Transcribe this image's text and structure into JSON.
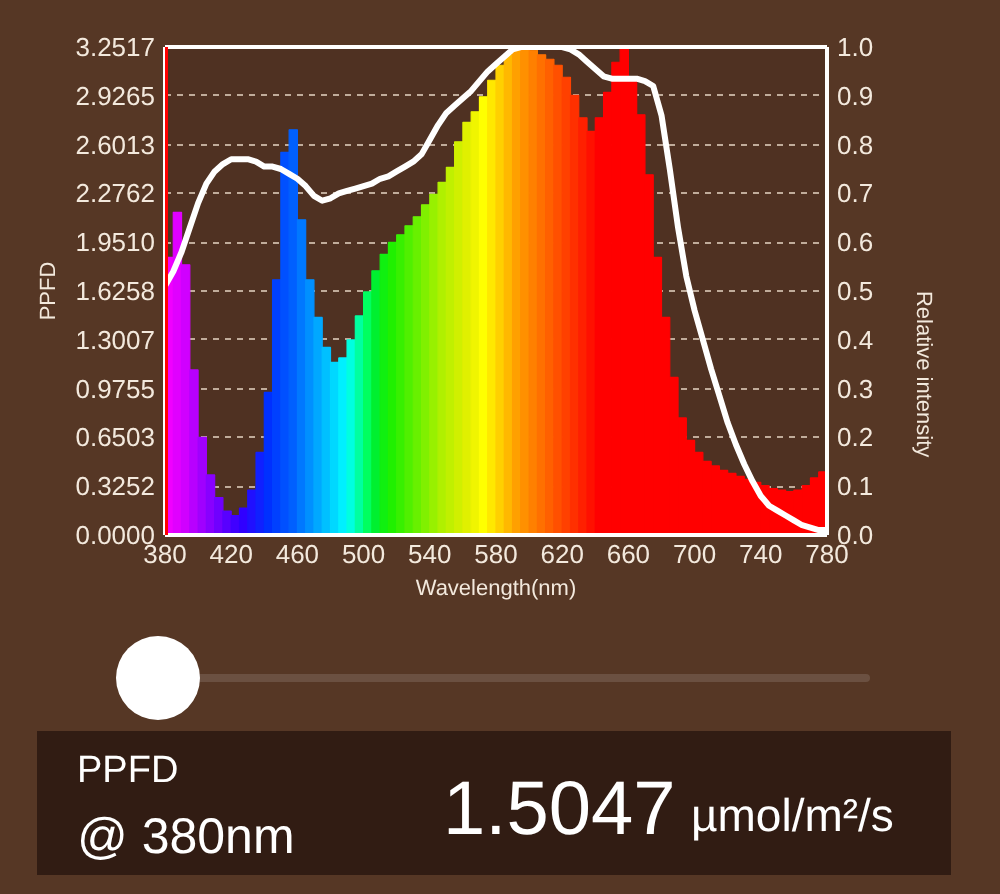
{
  "chart_data": {
    "type": "histogram",
    "xlabel": "Wavelength(nm)",
    "ylabel": "PPFD",
    "y2label": "Relative intensity",
    "annotations": [
      "PPFD",
      "@ 380nm",
      "1.5047",
      "µmol/m²/s"
    ],
    "series": [
      {
        "bins": [
          380,
          385,
          390,
          395,
          400,
          405,
          410,
          415,
          420,
          425,
          430,
          435,
          440,
          445,
          450,
          455,
          460,
          465,
          470,
          475,
          480,
          485,
          490,
          495,
          500,
          505,
          510,
          515,
          520,
          525,
          530,
          535,
          540,
          545,
          550,
          555,
          560,
          565,
          570,
          575,
          580,
          585,
          590,
          595,
          600,
          605,
          610,
          615,
          620,
          625,
          630,
          635,
          640,
          645,
          650,
          655,
          660,
          665,
          670,
          675,
          680,
          685,
          690,
          695,
          700,
          705,
          710,
          715,
          720,
          725,
          730,
          735,
          740,
          745,
          750,
          755,
          760,
          765,
          770,
          775,
          780
        ],
        "values": [
          1.85,
          2.15,
          1.8,
          1.1,
          0.65,
          0.4,
          0.25,
          0.16,
          0.13,
          0.18,
          0.3,
          0.55,
          0.95,
          1.7,
          2.55,
          2.7,
          2.1,
          1.7,
          1.45,
          1.25,
          1.15,
          1.18,
          1.3,
          1.46,
          1.62,
          1.76,
          1.87,
          1.95,
          2.0,
          2.06,
          2.12,
          2.2,
          2.27,
          2.35,
          2.45,
          2.62,
          2.75,
          2.82,
          2.92,
          3.03,
          3.13,
          3.2,
          3.24,
          3.25,
          3.23,
          3.2,
          3.17,
          3.13,
          3.05,
          2.93,
          2.78,
          2.69,
          2.78,
          2.95,
          3.15,
          3.24,
          3.02,
          2.8,
          2.4,
          1.85,
          1.45,
          1.05,
          0.78,
          0.63,
          0.55,
          0.49,
          0.46,
          0.43,
          0.41,
          0.39,
          0.37,
          0.35,
          0.33,
          0.31,
          0.3,
          0.29,
          0.3,
          0.33,
          0.38,
          0.42
        ],
        "colors": [
          "#f000ff",
          "#e000ff",
          "#d000ff",
          "#b800ff",
          "#a000ff",
          "#8800ff",
          "#7000ff",
          "#5800ff",
          "#4000ff",
          "#3000ff",
          "#2010ff",
          "#1020ff",
          "#0030ff",
          "#0040ff",
          "#0050ff",
          "#0060ff",
          "#0078ff",
          "#0090ff",
          "#00a8ff",
          "#00c0ff",
          "#00d8ff",
          "#00f0ff",
          "#00ffe0",
          "#00ffa0",
          "#00ff60",
          "#00f030",
          "#10f010",
          "#20f000",
          "#38f000",
          "#50f000",
          "#68f000",
          "#80f000",
          "#98f000",
          "#b0f000",
          "#c0f000",
          "#d0f000",
          "#e0f000",
          "#f0f500",
          "#ffff00",
          "#ffe800",
          "#ffd000",
          "#ffb800",
          "#ffa000",
          "#ff9000",
          "#ff8000",
          "#ff7000",
          "#ff6000",
          "#ff5000",
          "#ff4000",
          "#ff3000",
          "#ff2000",
          "#ff1000",
          "#ff0000",
          "#ff0000",
          "#ff0000",
          "#ff0000",
          "#ff0000",
          "#ff0000",
          "#ff0000",
          "#ff0000",
          "#ff0000",
          "#ff0000",
          "#ff0000",
          "#ff0000",
          "#ff0000",
          "#ff0000",
          "#ff0000",
          "#ff0000",
          "#ff0000",
          "#ff0000",
          "#ff0000",
          "#ff0000",
          "#ff0000",
          "#ff0000",
          "#ff0000",
          "#ff0000",
          "#ff0000",
          "#ff0000",
          "#ff0000",
          "#ff0000"
        ]
      },
      {
        "type": "line",
        "axis": "y2",
        "color": "#ffffff",
        "line_style": "solid",
        "x": [
          380,
          385,
          390,
          395,
          400,
          405,
          410,
          415,
          420,
          425,
          430,
          435,
          440,
          445,
          450,
          455,
          460,
          465,
          470,
          475,
          480,
          485,
          490,
          495,
          500,
          505,
          510,
          515,
          520,
          525,
          530,
          535,
          540,
          545,
          550,
          555,
          560,
          565,
          570,
          575,
          580,
          585,
          590,
          595,
          600,
          605,
          610,
          615,
          620,
          625,
          630,
          635,
          640,
          645,
          650,
          655,
          660,
          665,
          670,
          675,
          680,
          685,
          690,
          695,
          700,
          705,
          710,
          715,
          720,
          725,
          730,
          735,
          740,
          745,
          750,
          755,
          760,
          765,
          770,
          775,
          780
        ],
        "values": [
          0.51,
          0.54,
          0.58,
          0.63,
          0.68,
          0.72,
          0.745,
          0.76,
          0.77,
          0.77,
          0.77,
          0.765,
          0.755,
          0.755,
          0.75,
          0.74,
          0.73,
          0.715,
          0.695,
          0.685,
          0.69,
          0.7,
          0.705,
          0.71,
          0.715,
          0.72,
          0.73,
          0.735,
          0.745,
          0.755,
          0.765,
          0.78,
          0.81,
          0.84,
          0.865,
          0.88,
          0.895,
          0.91,
          0.93,
          0.95,
          0.965,
          0.98,
          0.995,
          1.0,
          1.0,
          1.0,
          1.0,
          1.0,
          1.0,
          0.995,
          0.985,
          0.97,
          0.955,
          0.94,
          0.935,
          0.935,
          0.935,
          0.935,
          0.93,
          0.92,
          0.86,
          0.75,
          0.63,
          0.53,
          0.46,
          0.4,
          0.34,
          0.285,
          0.23,
          0.185,
          0.145,
          0.11,
          0.08,
          0.06,
          0.05,
          0.04,
          0.03,
          0.02,
          0.015,
          0.01,
          0.01
        ]
      }
    ],
    "xlim": [
      380,
      780
    ],
    "xticks": [
      380,
      420,
      460,
      500,
      540,
      580,
      620,
      660,
      700,
      740,
      780
    ],
    "ylim": [
      0,
      3.2517
    ],
    "yticks": [
      {
        "value": 0,
        "label": "0.0000"
      },
      0.3252,
      0.6503,
      0.9755,
      1.3007,
      1.6258,
      {
        "value": 1.951,
        "label": "1.9510"
      },
      2.2762,
      2.6013,
      2.9265,
      3.2517
    ],
    "y2lim": [
      0,
      1
    ],
    "y2ticks": [
      {
        "value": 0,
        "label": "0.0"
      },
      0.1,
      0.2,
      0.3,
      0.4,
      0.5,
      0.6,
      0.7,
      0.8,
      0.9,
      {
        "value": 1,
        "label": "1.0"
      }
    ],
    "ref_lines": [
      {
        "axis": "x",
        "value": 380,
        "color": "#ff0000"
      }
    ],
    "grid": true
  }
}
